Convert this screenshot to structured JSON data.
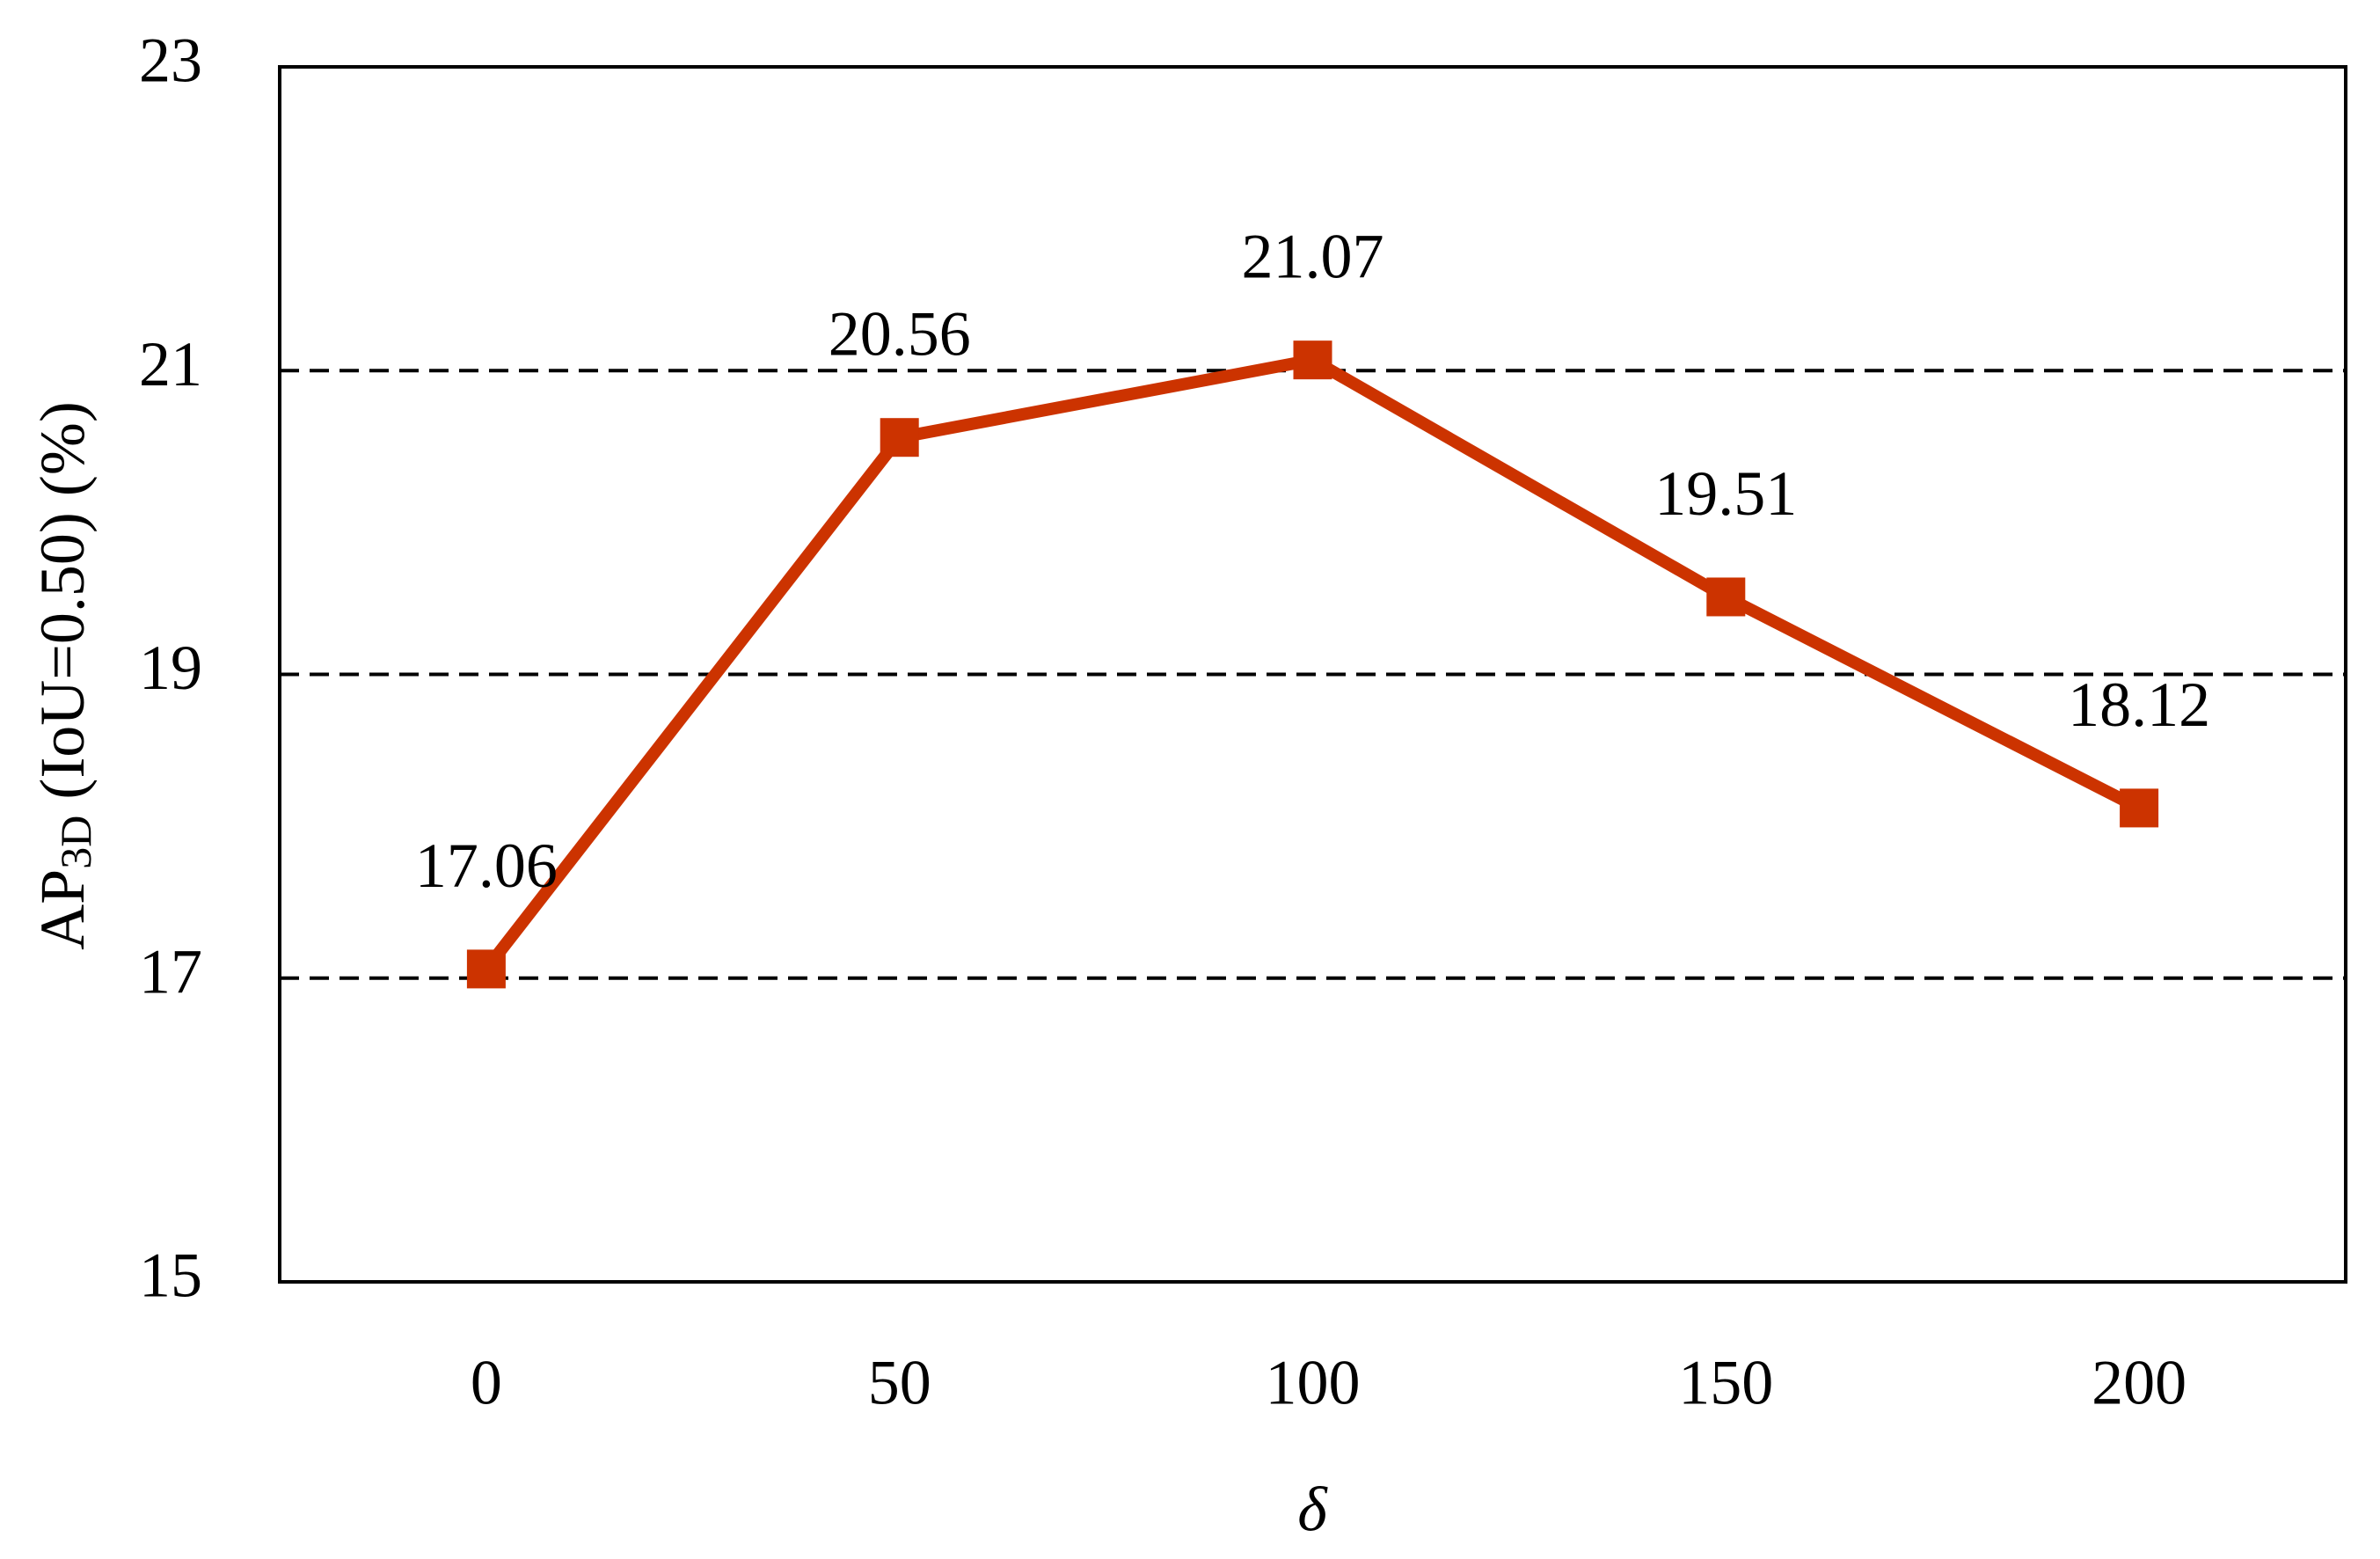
{
  "chart_data": {
    "type": "line",
    "y_label": {
      "main": "AP",
      "sub": "3D",
      "rest": " (IoU=0.50) (%)"
    },
    "x_label": "δ",
    "categories": [
      "0",
      "50",
      "100",
      "150",
      "200"
    ],
    "series": [
      {
        "color": "#cc3300",
        "values": [
          17.06,
          20.56,
          21.07,
          19.51,
          18.12
        ]
      }
    ],
    "ylim": [
      15,
      23
    ],
    "yticks": [
      15,
      17,
      19,
      21,
      23
    ],
    "grid": true,
    "data_labels": true
  }
}
